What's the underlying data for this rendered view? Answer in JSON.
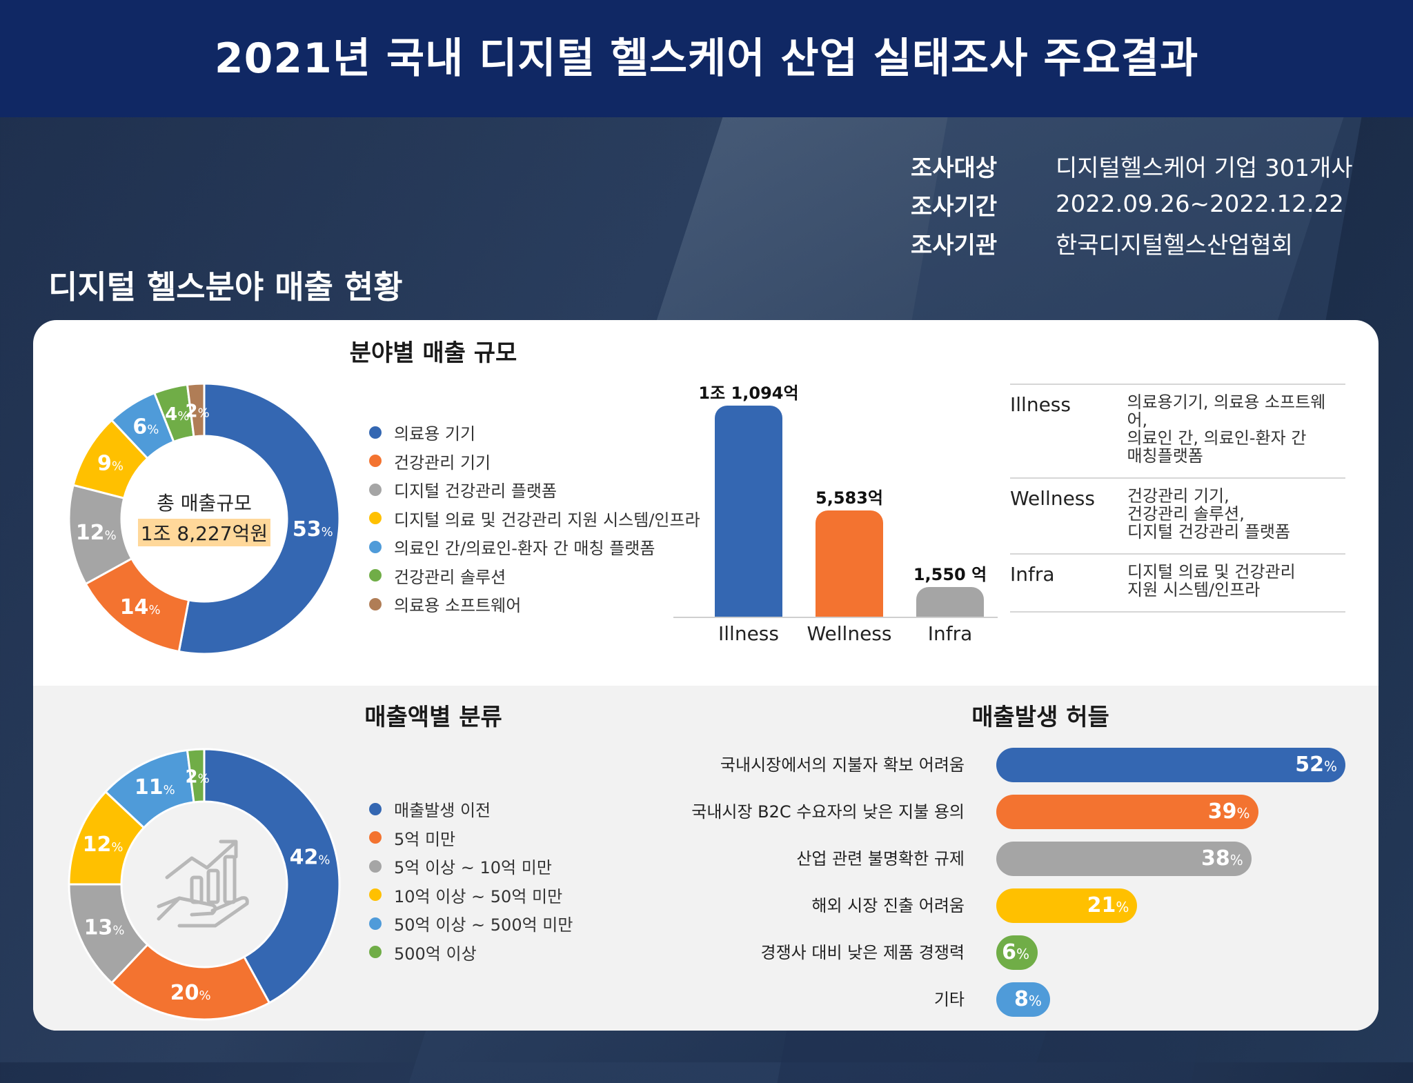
{
  "header": {
    "title": "2021년 국내 디지털 헬스케어 산업 실태조사 주요결과"
  },
  "survey_info": [
    {
      "key": "조사대상",
      "value": "디지털헬스케어 기업 301개사"
    },
    {
      "key": "조사기간",
      "value": "2022.09.26~2022.12.22"
    },
    {
      "key": "조사기관",
      "value": "한국디지털헬스산업협회"
    }
  ],
  "section_title": "디지털 헬스분야 매출 현황",
  "center": {
    "line1": "총 매출규모",
    "line2": "1조 8,227억원"
  },
  "colors": {
    "blue": "#3467b2",
    "orange": "#f37330",
    "gray": "#a5a5a5",
    "yellow": "#ffc000",
    "lightblue": "#4f9bd9",
    "green": "#70ad47",
    "brown": "#b07d56"
  },
  "chart_data": [
    {
      "type": "pie",
      "title": "분야별 매출 규모",
      "labels": [
        "의료용 기기",
        "건강관리 기기",
        "디지털 건강관리 플랫폼",
        "디지털 의료 및 건강관리 지원 시스템/인프라",
        "의료인 간/의료인-환자 간 매칭 플랫폼",
        "건강관리 솔루션",
        "의료용 소프트웨어"
      ],
      "values": [
        53,
        14,
        12,
        9,
        6,
        4,
        2
      ],
      "unit": "%",
      "colors": [
        "#3467b2",
        "#f37330",
        "#a5a5a5",
        "#ffc000",
        "#4f9bd9",
        "#70ad47",
        "#b07d56"
      ]
    },
    {
      "type": "bar",
      "categories": [
        "Illness",
        "Wellness",
        "Infra"
      ],
      "values": [
        11094,
        5583,
        1550
      ],
      "value_labels": [
        "1조 1,094억",
        "5,583억",
        "1,550 억"
      ],
      "unit": "억원",
      "colors": [
        "#3467b2",
        "#f37330",
        "#a5a5a5"
      ],
      "ylim": [
        0,
        11094
      ]
    },
    {
      "type": "pie",
      "title": "매출액별 분류",
      "labels": [
        "매출발생 이전",
        "5억 미만",
        "5억 이상 ~ 10억 미만",
        "10억 이상 ~ 50억 미만",
        "50억 이상 ~ 500억 미만",
        "500억 이상"
      ],
      "values": [
        42,
        20,
        13,
        12,
        11,
        2
      ],
      "unit": "%",
      "colors": [
        "#3467b2",
        "#f37330",
        "#a5a5a5",
        "#ffc000",
        "#4f9bd9",
        "#70ad47"
      ]
    },
    {
      "type": "bar",
      "orientation": "horizontal",
      "title": "매출발생 허들",
      "categories": [
        "국내시장에서의 지불자 확보 어려움",
        "국내시장 B2C 수요자의 낮은 지불 용의",
        "산업 관련 불명확한 규제",
        "해외 시장 진출 어려움",
        "경쟁사 대비 낮은 제품 경쟁력",
        "기타"
      ],
      "values": [
        52,
        39,
        38,
        21,
        6,
        8
      ],
      "unit": "%",
      "colors": [
        "#3467b2",
        "#f37330",
        "#a5a5a5",
        "#ffc000",
        "#70ad47",
        "#4f9bd9"
      ],
      "xlim": [
        0,
        52
      ]
    }
  ],
  "domains_table": [
    {
      "name": "Illness",
      "desc": "의료용기기, 의료용 소프트웨어,\n의료인 간, 의료인-환자 간\n매칭플랫폼"
    },
    {
      "name": "Wellness",
      "desc": "건강관리 기기,\n건강관리 솔루션,\n디지털 건강관리 플랫폼"
    },
    {
      "name": "Infra",
      "desc": "디지털 의료 및 건강관리\n지원 시스템/인프라"
    }
  ]
}
